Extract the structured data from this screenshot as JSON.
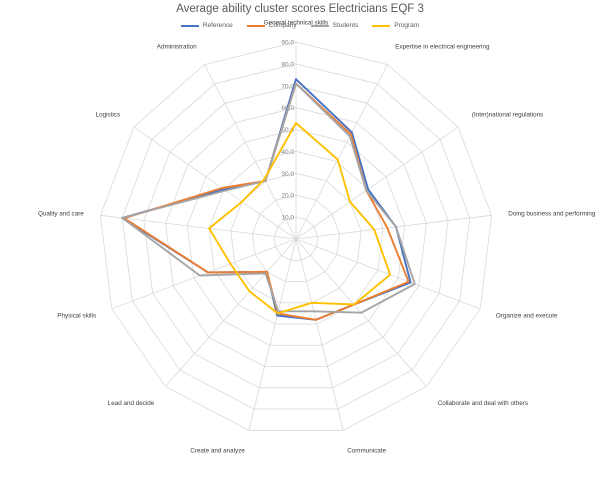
{
  "chart_data": {
    "type": "radar",
    "title": "Average ability cluster scores Electricians EQF 3",
    "categories": [
      "General technical skills",
      "Expertise in electrical engineering",
      "(Inter)national regulations",
      "Doing business and performing",
      "Organize and execute",
      "Collaborate and deal with others",
      "Communicate",
      "Create and analyze",
      "Lead and decide",
      "Physical skills",
      "Quality and care",
      "Logistics",
      "Administration"
    ],
    "rlim": [
      0,
      90
    ],
    "rticks": [
      "10,0",
      "20,0",
      "30,0",
      "40,0",
      "50,0",
      "60,0",
      "70,0",
      "80,0",
      "90,0"
    ],
    "grid": true,
    "legend_position": "top",
    "series": [
      {
        "name": "Reference",
        "color": "#4472c4",
        "values": [
          73,
          55,
          40,
          46,
          56,
          40,
          38,
          36,
          20,
          43,
          80,
          40,
          30
        ]
      },
      {
        "name": "Company",
        "color": "#ed7d31",
        "values": [
          71,
          54,
          39,
          42,
          55,
          40,
          38,
          35,
          20,
          43,
          79,
          41,
          30
        ]
      },
      {
        "name": "Students",
        "color": "#a5a5a5",
        "values": [
          71,
          53,
          39,
          46,
          58,
          45,
          34,
          34,
          21,
          47,
          80,
          39,
          30
        ]
      },
      {
        "name": "Program",
        "color": "#ffc000",
        "values": [
          53,
          41,
          30,
          36,
          46,
          40,
          30,
          35,
          32,
          32,
          40,
          30,
          31
        ]
      }
    ]
  }
}
